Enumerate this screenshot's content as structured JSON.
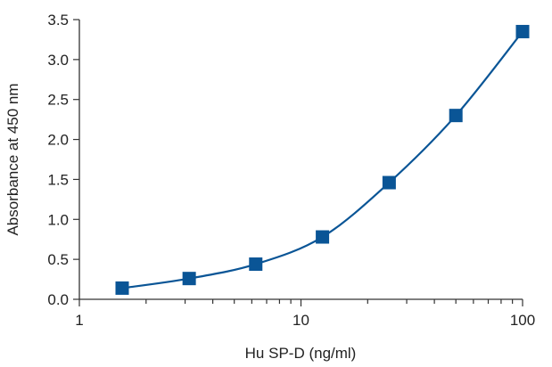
{
  "chart_data": {
    "type": "scatter",
    "title": "",
    "xlabel": "Hu SP-D (ng/ml)",
    "ylabel": "Absorbance at 450 nm",
    "x_scale": "log",
    "xlim": [
      1,
      100
    ],
    "ylim": [
      0,
      3.5
    ],
    "x_ticks": [
      {
        "value": 1,
        "label": "1"
      },
      {
        "value": 10,
        "label": "10"
      },
      {
        "value": 100,
        "label": "100"
      }
    ],
    "y_ticks": [
      {
        "value": 0,
        "label": "0.0"
      },
      {
        "value": 0.5,
        "label": "0.5"
      },
      {
        "value": 1.0,
        "label": "1.0"
      },
      {
        "value": 1.5,
        "label": "1.5"
      },
      {
        "value": 2.0,
        "label": "2.0"
      },
      {
        "value": 2.5,
        "label": "2.5"
      },
      {
        "value": 3.0,
        "label": "3.0"
      },
      {
        "value": 3.5,
        "label": "3.5"
      }
    ],
    "grid": false,
    "series": [
      {
        "color": "#0a5596",
        "marker": "square",
        "line": "smooth-fit",
        "x": [
          1.56,
          3.13,
          6.25,
          12.5,
          25,
          50,
          100
        ],
        "y": [
          0.14,
          0.26,
          0.44,
          0.78,
          1.46,
          2.3,
          3.35
        ]
      }
    ]
  }
}
